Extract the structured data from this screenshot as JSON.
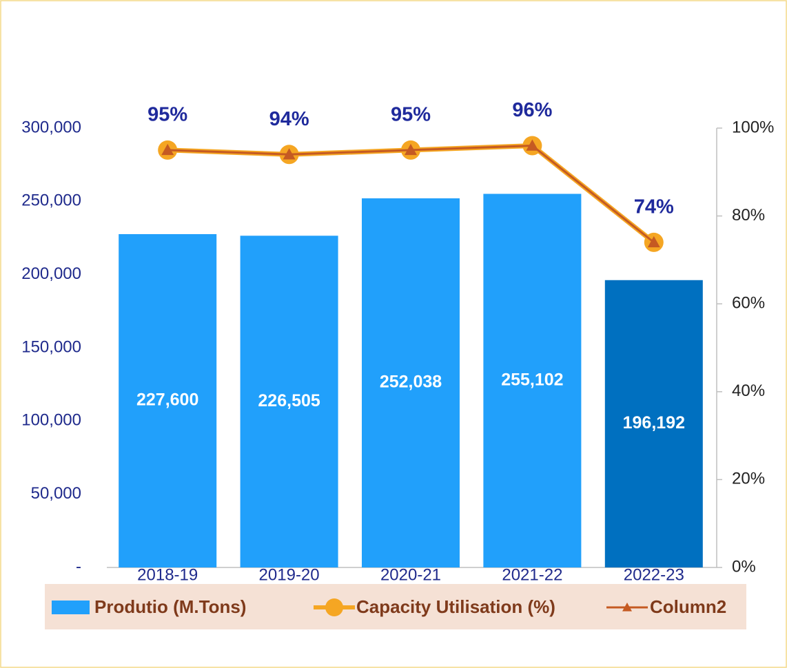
{
  "chart_data": {
    "type": "bar",
    "categories": [
      "2018-19",
      "2019-20",
      "2020-21",
      "2021-22",
      "2022-23"
    ],
    "series": [
      {
        "name": "Produtio (M.Tons)",
        "type": "bar",
        "colors": [
          "#21a0fb",
          "#21a0fb",
          "#21a0fb",
          "#21a0fb",
          "#0070c0"
        ],
        "values": [
          227600,
          226505,
          252038,
          255102,
          196192
        ],
        "value_labels": [
          "227,600",
          "226,505",
          "252,038",
          "255,102",
          "196,192"
        ]
      },
      {
        "name": "Capacity Utilisation (%)",
        "type": "line",
        "axis": "y2",
        "color": "#f5a623",
        "marker": "circle",
        "values": [
          95,
          94,
          95,
          96,
          74
        ],
        "value_labels": [
          "95%",
          "94%",
          "95%",
          "96%",
          "74%"
        ]
      },
      {
        "name": "Column2",
        "type": "line",
        "axis": "y2",
        "color": "#c55a22",
        "marker": "triangle",
        "values": [
          95,
          94,
          95,
          96,
          74
        ]
      }
    ],
    "ylim": [
      0,
      300000
    ],
    "yticks": [
      {
        "value": 0,
        "label": "-"
      },
      {
        "value": 50000,
        "label": "50,000"
      },
      {
        "value": 100000,
        "label": "100,000"
      },
      {
        "value": 150000,
        "label": "150,000"
      },
      {
        "value": 200000,
        "label": "200,000"
      },
      {
        "value": 250000,
        "label": "250,000"
      },
      {
        "value": 300000,
        "label": "300,000"
      }
    ],
    "y2lim": [
      0,
      100
    ],
    "y2ticks": [
      {
        "value": 0,
        "label": "0%"
      },
      {
        "value": 20,
        "label": "20%"
      },
      {
        "value": 40,
        "label": "40%"
      },
      {
        "value": 60,
        "label": "60%"
      },
      {
        "value": 80,
        "label": "80%"
      },
      {
        "value": 100,
        "label": "100%"
      }
    ],
    "legend": "bottom"
  }
}
